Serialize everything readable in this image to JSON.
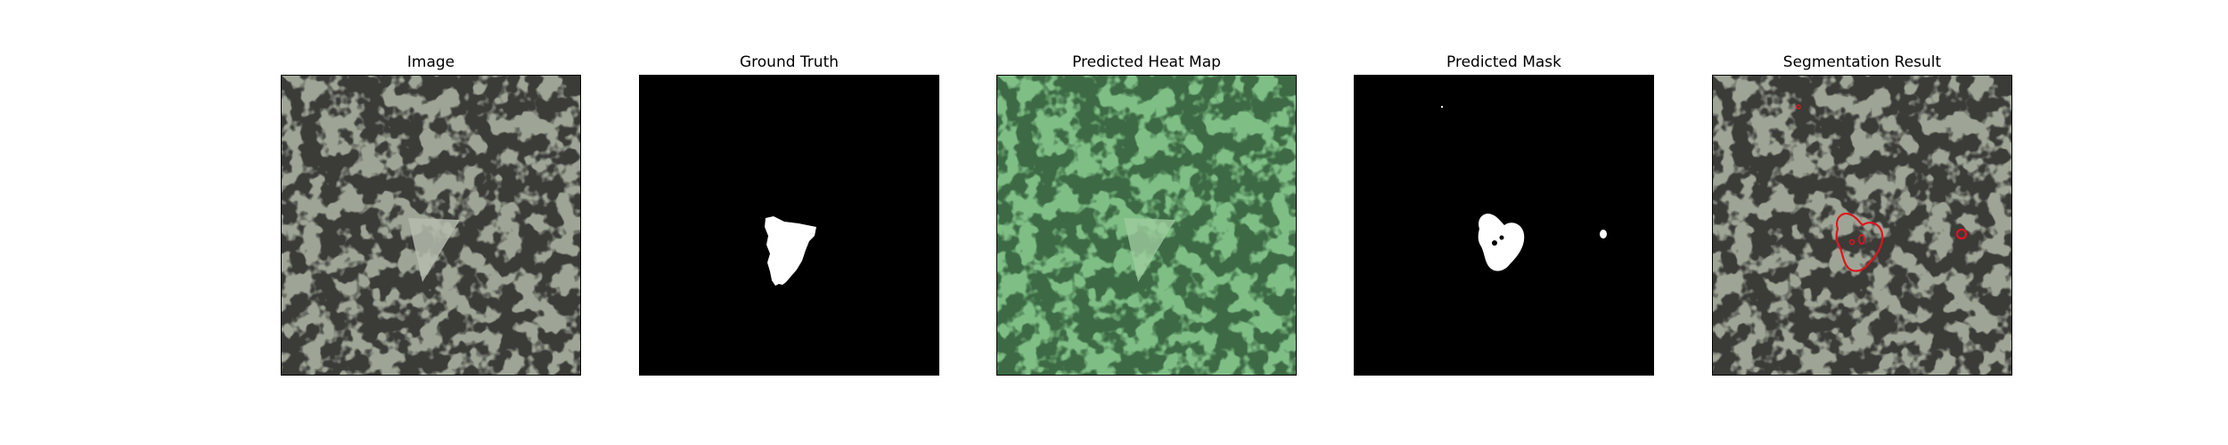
{
  "figure": {
    "panels": [
      {
        "id": "image",
        "title": "Image"
      },
      {
        "id": "ground-truth",
        "title": "Ground Truth"
      },
      {
        "id": "heat-map",
        "title": "Predicted Heat Map"
      },
      {
        "id": "predicted-mask",
        "title": "Predicted Mask"
      },
      {
        "id": "segmentation-result",
        "title": "Segmentation Result"
      }
    ]
  },
  "colors": {
    "background": "#ffffff",
    "frame": "#000000",
    "texture_light": "#9ea596",
    "texture_dark": "#3a3a38",
    "heat_overlay": "#59c268",
    "mask_white": "#ffffff",
    "mask_black": "#000000",
    "contour_red": "#e0141e"
  }
}
